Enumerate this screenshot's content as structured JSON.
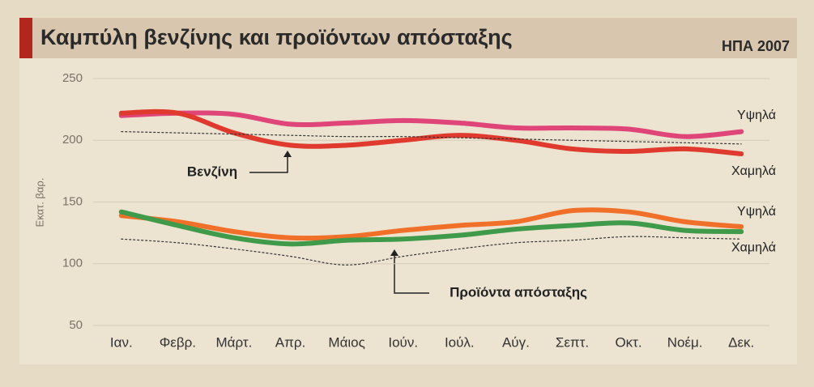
{
  "chart_data": {
    "type": "line",
    "title": "Καμπύλη βενζίνης και προϊόντων απόσταξης",
    "subtitle": "ΗΠΑ 2007",
    "y_label": "Εκατ. βαρ.",
    "categories": [
      "Ιαν.",
      "Φεβρ.",
      "Μάρτ.",
      "Απρ.",
      "Μάιος",
      "Ιούν.",
      "Ιούλ.",
      "Αύγ.",
      "Σεπτ.",
      "Οκτ.",
      "Νοέμ.",
      "Δεκ."
    ],
    "ylim": [
      50,
      250
    ],
    "yticks": [
      50,
      100,
      150,
      200,
      250
    ],
    "annotations": [
      "Βενζίνη",
      "Προϊόντα απόσταξης"
    ],
    "series": [
      {
        "name": "Υψηλά",
        "color": "#e0457a",
        "values": [
          220,
          222,
          221,
          213,
          214,
          216,
          214,
          210,
          210,
          209,
          203,
          207
        ]
      },
      {
        "name": "Χαμηλά",
        "color": "#e03a2e",
        "values": [
          222,
          222,
          206,
          196,
          196,
          200,
          204,
          200,
          193,
          191,
          193,
          189
        ]
      },
      {
        "color": "#333333",
        "dashed": true,
        "values": [
          207,
          206,
          205,
          204,
          203,
          203,
          202,
          201,
          200,
          199,
          198,
          197
        ]
      },
      {
        "name": "Υψηλά",
        "color": "#f0702a",
        "values": [
          139,
          134,
          126,
          121,
          122,
          127,
          131,
          134,
          143,
          142,
          134,
          130
        ]
      },
      {
        "name": "Χαμηλά",
        "color": "#3f9a4a",
        "values": [
          142,
          131,
          121,
          116,
          119,
          120,
          123,
          128,
          131,
          133,
          127,
          126
        ]
      },
      {
        "color": "#333333",
        "dashed": true,
        "values": [
          120,
          117,
          112,
          106,
          99,
          106,
          112,
          117,
          119,
          122,
          121,
          120
        ]
      }
    ]
  }
}
